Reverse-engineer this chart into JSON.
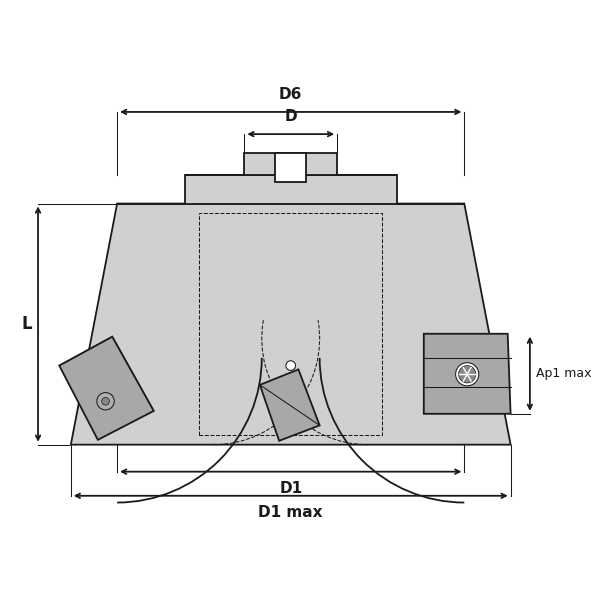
{
  "bg_color": "#ffffff",
  "line_color": "#1a1a1a",
  "body_fill": "#d0d0d0",
  "dark_fill": "#b0b0b0",
  "insert_fill": "#a8a8a8",
  "insert_dark": "#888888",
  "labels": {
    "D6": "D6",
    "D": "D",
    "D1": "D1",
    "D1max": "D1 max",
    "L": "L",
    "Ap1max": "Ap1 max"
  },
  "figsize": [
    6.0,
    6.0
  ],
  "dpi": 100
}
